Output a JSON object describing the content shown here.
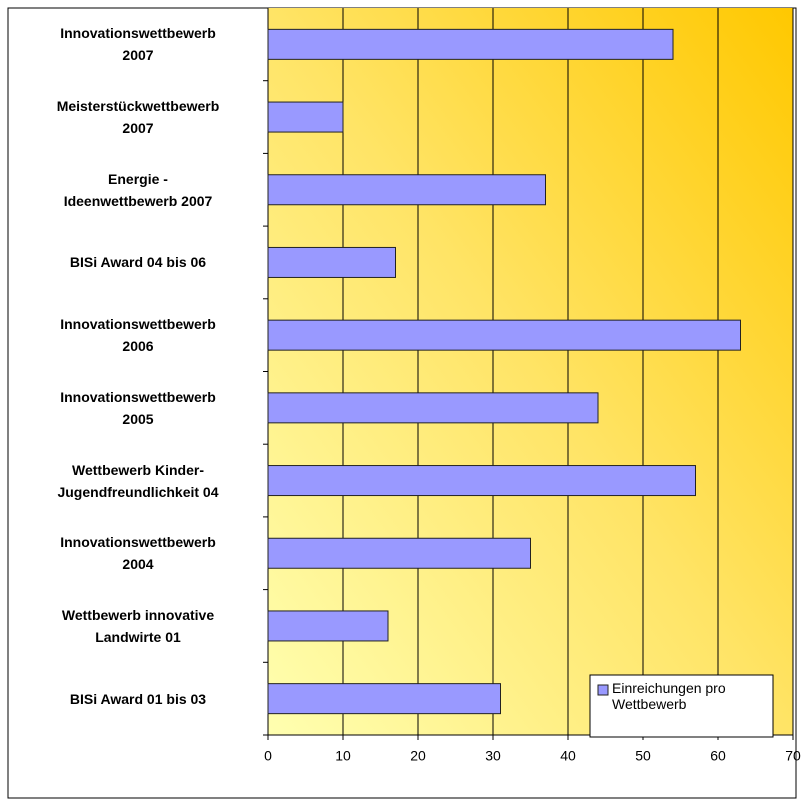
{
  "chart_data": {
    "type": "bar",
    "orientation": "horizontal",
    "categories": [
      "Innovationswettbewerb\n2007",
      "Meisterstückwettbewerb\n2007",
      "Energie -\nIdeenwettbewerb 2007",
      "BISi Award 04 bis 06",
      "Innovationswettbewerb\n2006",
      "Innovationswettbewerb\n2005",
      "Wettbewerb Kinder-\nJugendfreundlichkeit 04",
      "Innovationswettbewerb\n2004",
      "Wettbewerb innovative\nLandwirte 01",
      "BISi Award 01 bis 03"
    ],
    "series": [
      {
        "name": "Einreichungen pro Wettbewerb",
        "color": "#9999ff",
        "values": [
          54,
          10,
          37,
          17,
          63,
          44,
          57,
          35,
          16,
          31
        ]
      }
    ],
    "xlim": [
      0,
      70
    ],
    "xticks": [
      0,
      10,
      20,
      30,
      40,
      50,
      60,
      70
    ],
    "grid": true,
    "legend": "bottom-right"
  }
}
